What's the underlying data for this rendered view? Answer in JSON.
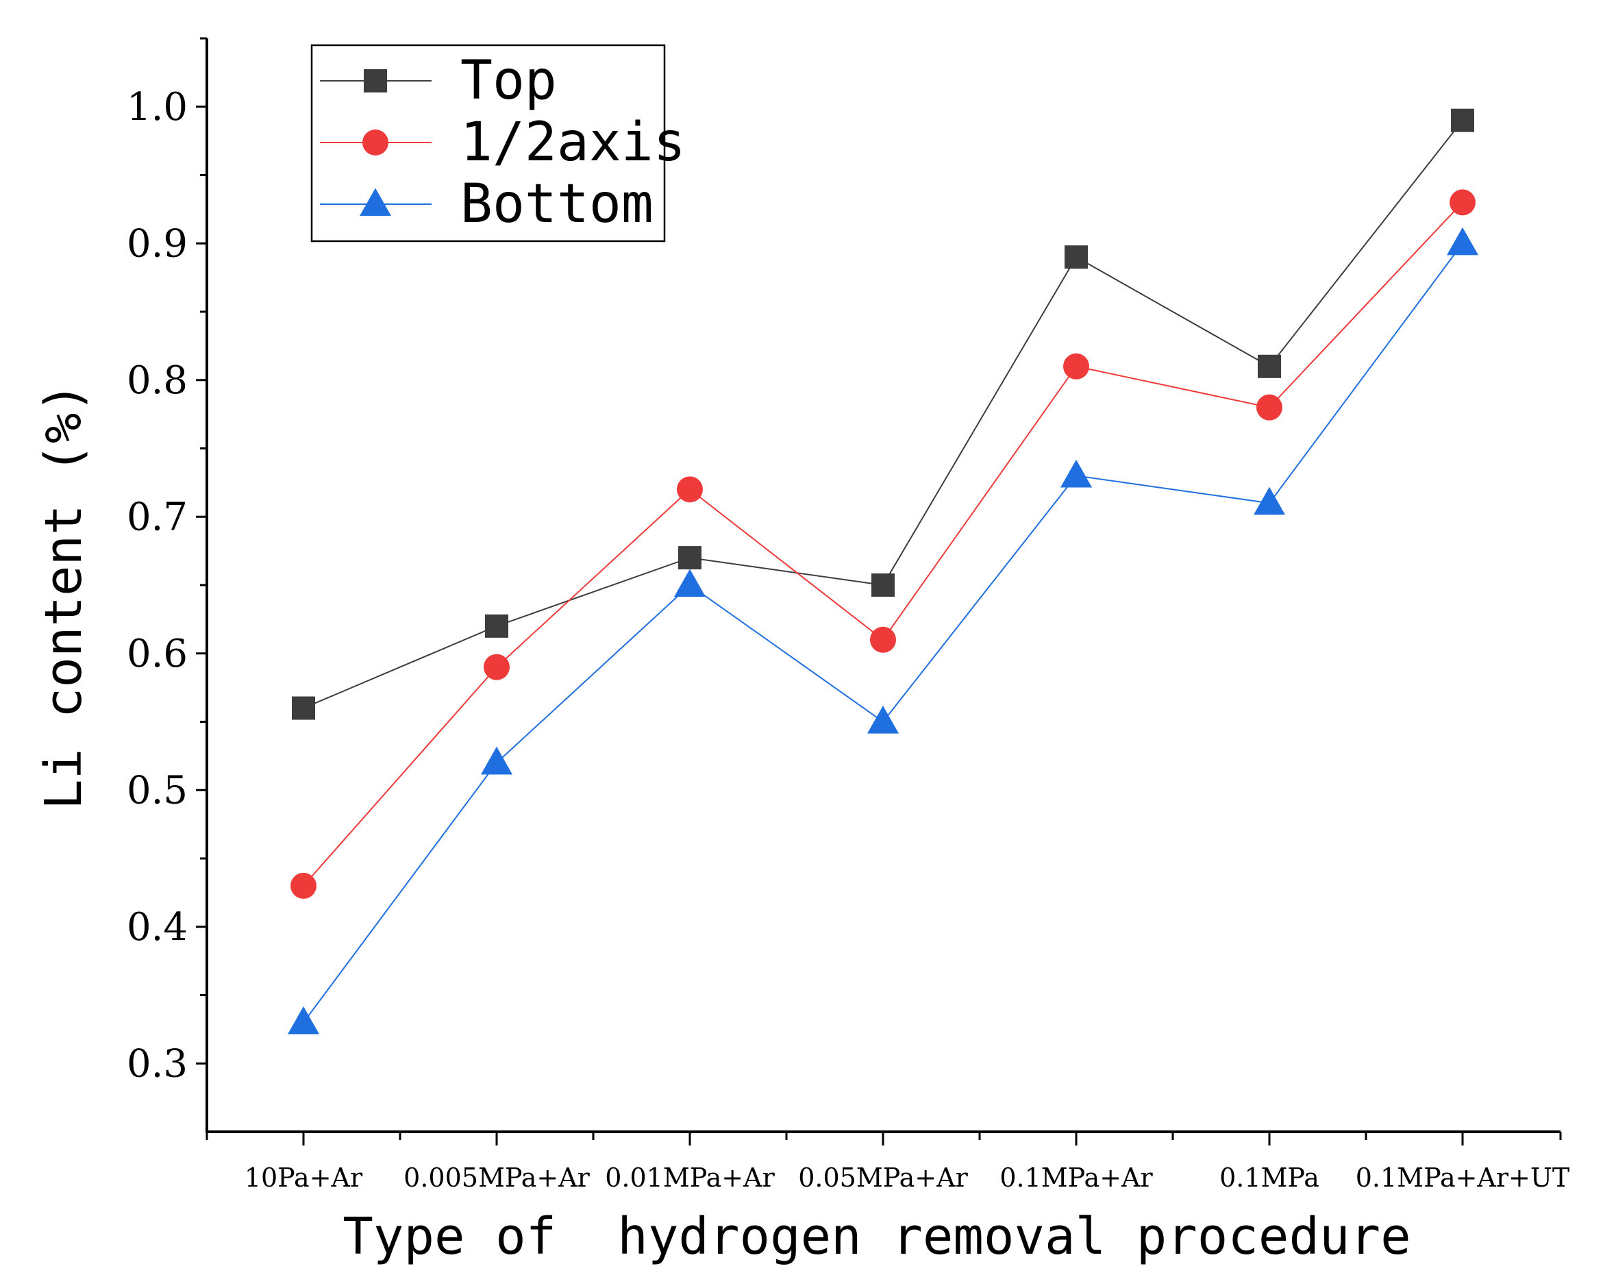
{
  "chart_data": {
    "type": "line",
    "title": "",
    "xlabel": "Type of  hydrogen removal procedure",
    "ylabel": "Li content (%)",
    "categories": [
      "10Pa+Ar",
      "0.005MPa+Ar",
      "0.01MPa+Ar",
      "0.05MPa+Ar",
      "0.1MPa+Ar",
      "0.1MPa",
      "0.1MPa+Ar+UT"
    ],
    "ylim": [
      0.25,
      1.05
    ],
    "yticks": [
      "0.3",
      "0.4",
      "0.5",
      "0.6",
      "0.7",
      "0.8",
      "0.9",
      "1.0"
    ],
    "legend_position": "top-left",
    "grid": false,
    "series": [
      {
        "name": "Top",
        "marker": "square",
        "color": "#3d3d3d",
        "values": [
          0.56,
          0.62,
          0.67,
          0.65,
          0.89,
          0.81,
          0.99
        ]
      },
      {
        "name": "1/2axis",
        "marker": "circle",
        "color": "#ef3a3a",
        "values": [
          0.43,
          0.59,
          0.72,
          0.61,
          0.81,
          0.78,
          0.93
        ]
      },
      {
        "name": "Bottom",
        "marker": "triangle",
        "color": "#1f6fe0",
        "values": [
          0.33,
          0.52,
          0.65,
          0.55,
          0.73,
          0.71,
          0.9
        ]
      }
    ]
  }
}
